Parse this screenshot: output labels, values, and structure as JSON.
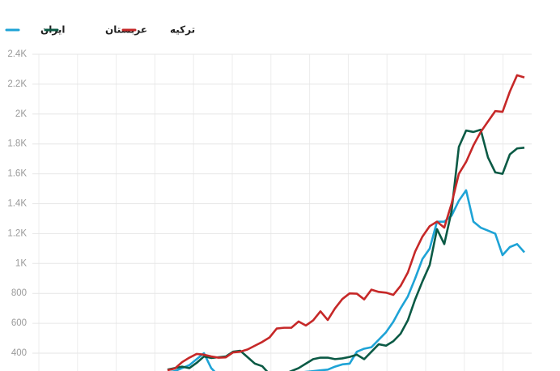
{
  "chart_data": {
    "type": "line",
    "categories": [
      null,
      null,
      null,
      null,
      null,
      null,
      null,
      null,
      null,
      null,
      null,
      null,
      null,
      null,
      null,
      null,
      null,
      null,
      null,
      null,
      null,
      null,
      null,
      null,
      null,
      null,
      null,
      null,
      null,
      null,
      null,
      null,
      null,
      null,
      null,
      null,
      null,
      null,
      null,
      null,
      null,
      null,
      null,
      null,
      null,
      null,
      null,
      null,
      null,
      null
    ],
    "series": [
      {
        "name": "ایران",
        "color": "#1ea3d6",
        "values": [
          270,
          280,
          300,
          320,
          360,
          400,
          300,
          250,
          240,
          235,
          230,
          235,
          240,
          245,
          250,
          255,
          260,
          265,
          270,
          275,
          280,
          285,
          290,
          310,
          325,
          330,
          410,
          430,
          440,
          490,
          540,
          610,
          700,
          780,
          900,
          1030,
          1100,
          1280,
          1280,
          1320,
          1420,
          1490,
          1280,
          1240,
          1220,
          1200,
          1056,
          1110,
          1130,
          1075
        ]
      },
      {
        "name": "عربستان",
        "color": "#0b5a45",
        "values": [
          290,
          300,
          310,
          300,
          335,
          378,
          368,
          373,
          378,
          410,
          416,
          373,
          330,
          313,
          260,
          250,
          260,
          280,
          300,
          330,
          360,
          370,
          370,
          360,
          365,
          375,
          390,
          360,
          410,
          460,
          450,
          480,
          530,
          620,
          760,
          880,
          990,
          1230,
          1130,
          1350,
          1780,
          1890,
          1880,
          1895,
          1710,
          1610,
          1600,
          1730,
          1770,
          1775
        ]
      },
      {
        "name": "ترکیه",
        "color": "#c62828",
        "values": [
          286,
          297,
          340,
          370,
          395,
          390,
          378,
          370,
          372,
          405,
          410,
          425,
          450,
          475,
          505,
          565,
          570,
          570,
          612,
          585,
          620,
          680,
          622,
          700,
          762,
          800,
          798,
          760,
          825,
          810,
          805,
          790,
          850,
          940,
          1080,
          1180,
          1250,
          1280,
          1240,
          1400,
          1600,
          1680,
          1790,
          1880,
          1950,
          2020,
          2015,
          2150,
          2260,
          2245
        ]
      }
    ],
    "ylim": [
      0,
      2400
    ],
    "yticks": [
      {
        "value": 400,
        "label": "400"
      },
      600,
      800,
      {
        "value": 1000,
        "label": "1K"
      },
      {
        "value": 1200,
        "label": "1.2K"
      },
      {
        "value": 1400,
        "label": "1.4K"
      },
      {
        "value": 1600,
        "label": "1.6K"
      },
      {
        "value": 1800,
        "label": "1.8K"
      },
      {
        "value": 2000,
        "label": "2K"
      },
      {
        "value": 2200,
        "label": "2.2K"
      },
      {
        "value": 2400,
        "label": "2.4K"
      }
    ],
    "grid": true
  }
}
